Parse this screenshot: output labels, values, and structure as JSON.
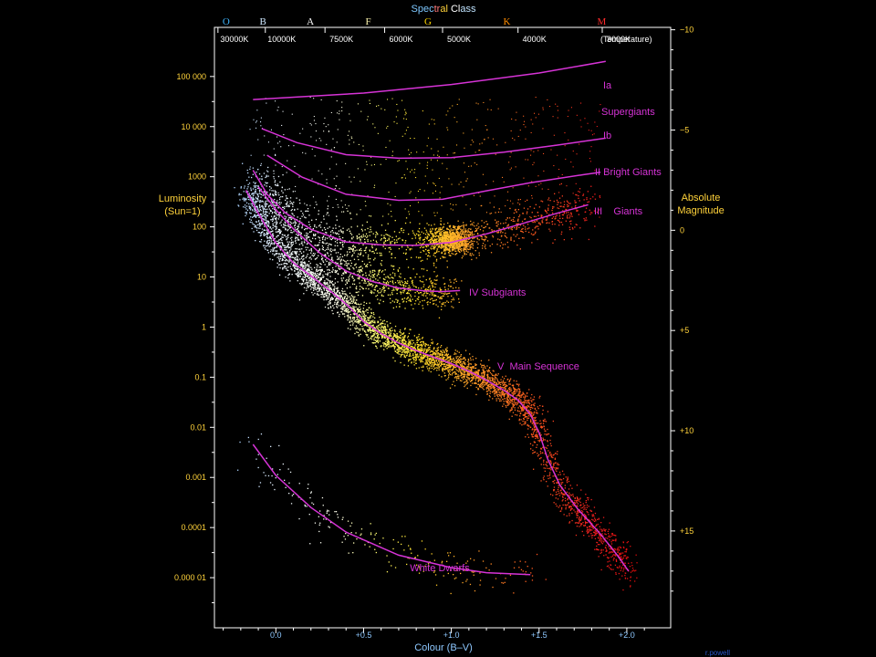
{
  "chart_data": {
    "type": "scatter",
    "title": {
      "parts": [
        {
          "text": "Spec",
          "color": "#7ec8ff"
        },
        {
          "text": "tr",
          "color": "#ff7a7a"
        },
        {
          "text": "al",
          "color": "#ffd23a"
        },
        {
          "text": " Cl",
          "color": "#ffffff"
        },
        {
          "text": "ass",
          "color": "#bfe3ff"
        }
      ]
    },
    "spectral_classes": [
      {
        "label": "O",
        "color": "#3fb6ff",
        "bv": -0.33
      },
      {
        "label": "B",
        "color": "#cfe8ff",
        "bv": -0.12
      },
      {
        "label": "A",
        "color": "#ffffff",
        "bv": 0.15
      },
      {
        "label": "F",
        "color": "#fff7b0",
        "bv": 0.48
      },
      {
        "label": "G",
        "color": "#ffd700",
        "bv": 0.82
      },
      {
        "label": "K",
        "color": "#ff8c00",
        "bv": 1.27
      },
      {
        "label": "M",
        "color": "#ff2a2a",
        "bv": 1.81
      }
    ],
    "temperature_ticks": [
      {
        "label": "30000K",
        "bv": -0.33
      },
      {
        "label": "10000K",
        "bv": -0.06
      },
      {
        "label": "7500K",
        "bv": 0.28
      },
      {
        "label": "6000K",
        "bv": 0.62
      },
      {
        "label": "5000K",
        "bv": 0.95
      },
      {
        "label": "4000K",
        "bv": 1.38
      },
      {
        "label": "3000K",
        "bv": 1.86
      }
    ],
    "temperature_label": "(Temperature)",
    "xlabel": "Colour (B–V)",
    "xlim": [
      -0.35,
      2.25
    ],
    "x_ticks": [
      {
        "value": 0.0,
        "label": "0.0"
      },
      {
        "value": 0.5,
        "label": "+0.5"
      },
      {
        "value": 1.0,
        "label": "+1.0"
      },
      {
        "value": 1.5,
        "label": "+1.5"
      },
      {
        "value": 2.0,
        "label": "+2.0"
      }
    ],
    "ylabel_left": [
      "Luminosity",
      "(Sun=1)"
    ],
    "ylabel_right": [
      "Absolute",
      "Magnitude"
    ],
    "ylim_log_luminosity": [
      -6.0,
      5.98
    ],
    "y_ticks_left": [
      {
        "log": 5,
        "label": "100 000"
      },
      {
        "log": 4,
        "label": "10 000"
      },
      {
        "log": 3,
        "label": "1000"
      },
      {
        "log": 2,
        "label": "100"
      },
      {
        "log": 1,
        "label": "10"
      },
      {
        "log": 0,
        "label": "1"
      },
      {
        "log": -1,
        "label": "0.1"
      },
      {
        "log": -2,
        "label": "0.01"
      },
      {
        "log": -3,
        "label": "0.001"
      },
      {
        "log": -4,
        "label": "0.0001"
      },
      {
        "log": -5,
        "label": "0.000 01"
      }
    ],
    "y_ticks_right": [
      {
        "mag": -10,
        "label": "−10"
      },
      {
        "mag": -5,
        "label": "−5"
      },
      {
        "mag": 0,
        "label": "0"
      },
      {
        "mag": 5,
        "label": "+5"
      },
      {
        "mag": 10,
        "label": "+10"
      },
      {
        "mag": 15,
        "label": "+15"
      }
    ],
    "series": [
      {
        "name": "Ia",
        "color": "#d633d6",
        "points": [
          [
            -0.13,
            4.54
          ],
          [
            0.5,
            4.67
          ],
          [
            1.0,
            4.84
          ],
          [
            1.5,
            5.07
          ],
          [
            1.88,
            5.3
          ]
        ]
      },
      {
        "name": "Ib",
        "color": "#d633d6",
        "points": [
          [
            -0.08,
            3.96
          ],
          [
            0.12,
            3.68
          ],
          [
            0.4,
            3.44
          ],
          [
            0.7,
            3.37
          ],
          [
            1.0,
            3.38
          ],
          [
            1.3,
            3.49
          ],
          [
            1.6,
            3.63
          ],
          [
            1.88,
            3.77
          ]
        ]
      },
      {
        "name": "II",
        "color": "#d633d6",
        "points": [
          [
            -0.05,
            3.43
          ],
          [
            0.15,
            2.99
          ],
          [
            0.4,
            2.65
          ],
          [
            0.7,
            2.53
          ],
          [
            0.95,
            2.55
          ],
          [
            1.2,
            2.72
          ],
          [
            1.45,
            2.88
          ],
          [
            1.75,
            3.04
          ],
          [
            1.85,
            3.09
          ]
        ]
      },
      {
        "name": "III",
        "color": "#d633d6",
        "points": [
          [
            -0.13,
            3.13
          ],
          [
            -0.05,
            2.65
          ],
          [
            0.05,
            2.29
          ],
          [
            0.2,
            1.95
          ],
          [
            0.4,
            1.7
          ],
          [
            0.6,
            1.64
          ],
          [
            0.8,
            1.63
          ],
          [
            1.0,
            1.69
          ],
          [
            1.2,
            1.86
          ],
          [
            1.4,
            2.06
          ],
          [
            1.6,
            2.27
          ],
          [
            1.78,
            2.44
          ]
        ]
      },
      {
        "name": "IV",
        "color": "#d633d6",
        "points": [
          [
            -0.1,
            2.8
          ],
          [
            0.0,
            2.34
          ],
          [
            0.1,
            1.96
          ],
          [
            0.25,
            1.48
          ],
          [
            0.4,
            1.12
          ],
          [
            0.55,
            0.91
          ],
          [
            0.7,
            0.78
          ],
          [
            0.85,
            0.72
          ],
          [
            0.95,
            0.71
          ],
          [
            1.05,
            0.73
          ]
        ]
      },
      {
        "name": "V",
        "color": "#d633d6",
        "points": [
          [
            -0.17,
            2.73
          ],
          [
            -0.1,
            2.27
          ],
          [
            0.0,
            1.68
          ],
          [
            0.1,
            1.28
          ],
          [
            0.2,
            1.02
          ],
          [
            0.3,
            0.75
          ],
          [
            0.4,
            0.46
          ],
          [
            0.5,
            0.11
          ],
          [
            0.6,
            -0.13
          ],
          [
            0.7,
            -0.32
          ],
          [
            0.8,
            -0.47
          ],
          [
            0.9,
            -0.6
          ],
          [
            1.0,
            -0.73
          ],
          [
            1.1,
            -0.88
          ],
          [
            1.2,
            -1.06
          ],
          [
            1.3,
            -1.26
          ],
          [
            1.38,
            -1.46
          ],
          [
            1.45,
            -1.74
          ],
          [
            1.5,
            -2.11
          ],
          [
            1.55,
            -2.64
          ],
          [
            1.62,
            -3.16
          ],
          [
            1.72,
            -3.63
          ],
          [
            1.85,
            -4.13
          ],
          [
            1.95,
            -4.57
          ],
          [
            2.01,
            -4.87
          ]
        ]
      },
      {
        "name": "White Dwarfs",
        "color": "#d633d6",
        "points": [
          [
            -0.13,
            -2.34
          ],
          [
            0.0,
            -2.96
          ],
          [
            0.2,
            -3.6
          ],
          [
            0.4,
            -4.09
          ],
          [
            0.7,
            -4.55
          ],
          [
            1.0,
            -4.8
          ],
          [
            1.2,
            -4.9
          ],
          [
            1.45,
            -4.94
          ]
        ]
      }
    ],
    "annotations": [
      {
        "text": "Ia",
        "color": "#d633d6",
        "anchor": "start"
      },
      {
        "text": "Supergiants",
        "color": "#d633d6",
        "anchor": "start"
      },
      {
        "text": "Ib",
        "color": "#d633d6",
        "anchor": "start"
      },
      {
        "text": "II Bright Giants",
        "color": "#d633d6",
        "anchor": "start"
      },
      {
        "text": "III    Giants",
        "color": "#d633d6",
        "anchor": "start"
      },
      {
        "text": "IV Subgiants",
        "color": "#d633d6",
        "anchor": "start"
      },
      {
        "text": "V  Main Sequence",
        "color": "#d633d6",
        "anchor": "start"
      },
      {
        "text": "White Dwarfs",
        "color": "#d633d6",
        "anchor": "middle"
      }
    ],
    "grid": false,
    "legend": "none",
    "credit": "r.powell"
  },
  "colors": {
    "background": "#000000",
    "axis": "#ffffff",
    "luminosity_labels": "#ffd23a",
    "colour_labels": "#8ec8ff",
    "temperature_labels": "#ffffff",
    "curves": "#d633d6"
  }
}
